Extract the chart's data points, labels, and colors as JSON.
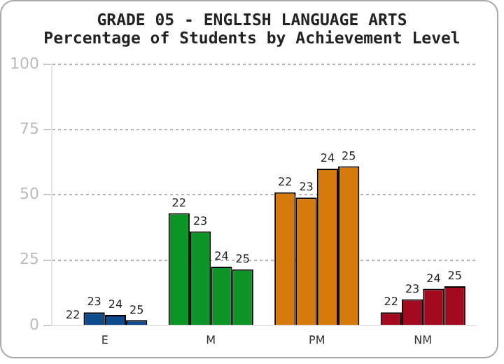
{
  "chart_data": {
    "type": "bar",
    "title": "GRADE 05 - ENGLISH LANGUAGE ARTS",
    "subtitle": "Percentage of Students by Achievement Level",
    "categories": [
      "E",
      "M",
      "PM",
      "NM"
    ],
    "series": [
      {
        "name": "22",
        "colors": [
          "#0d4a8e",
          "#0c9426",
          "#d67b0b",
          "#a30a1f"
        ],
        "values": [
          null,
          43,
          51,
          5
        ]
      },
      {
        "name": "23",
        "colors": [
          "#0d4a8e",
          "#0c9426",
          "#d67b0b",
          "#a30a1f"
        ],
        "values": [
          5,
          36,
          49,
          10
        ]
      },
      {
        "name": "24",
        "colors": [
          "#0d4a8e",
          "#0c9426",
          "#d67b0b",
          "#a30a1f"
        ],
        "values": [
          4,
          22.5,
          60,
          14
        ]
      },
      {
        "name": "25",
        "colors": [
          "#0d4a8e",
          "#0c9426",
          "#d67b0b",
          "#a30a1f"
        ],
        "values": [
          2,
          21.5,
          61,
          15
        ]
      }
    ],
    "ylim": [
      0,
      100
    ],
    "yticks": [
      0,
      25,
      50,
      75,
      100
    ],
    "grid": "y",
    "legend": false
  }
}
